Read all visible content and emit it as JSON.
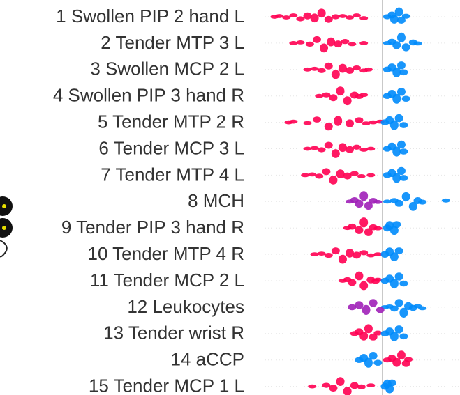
{
  "chart_data": {
    "type": "beeswarm",
    "categories": [
      "1 Swollen PIP 2 hand L",
      "2 Tender MTP 3 L",
      "3 Swollen MCP 2 L",
      "4 Swollen PIP 3 hand R",
      "5 Tender MTP 2 R",
      "6 Tender MCP 3 L",
      "7 Tender MTP 4 L",
      "8 MCH",
      "9 Tender PIP 3 hand R",
      "10 Tender MTP 4 R",
      "11 Tender MCP 2 L",
      "12 Leukocytes",
      "13 Tender wrist R",
      "14 aCCP",
      "15 Tender MCP 1 L"
    ],
    "xlim": [
      -0.5,
      0.33
    ],
    "series": [
      {
        "color": "#ff0052",
        "values": [
          [
            -0.46,
            -0.44,
            -0.41,
            -0.38,
            -0.35,
            -0.32,
            -0.29,
            -0.26,
            -0.23,
            -0.2,
            -0.17,
            -0.14,
            -0.11,
            -0.08
          ],
          [
            -0.38,
            -0.35,
            -0.31,
            -0.28,
            -0.25,
            -0.22,
            -0.19,
            -0.16,
            -0.13,
            -0.08
          ],
          [
            -0.32,
            -0.29,
            -0.26,
            -0.23,
            -0.2,
            -0.17,
            -0.14,
            -0.11,
            -0.08,
            -0.06
          ],
          [
            -0.27,
            -0.24,
            -0.21,
            -0.18,
            -0.15,
            -0.12,
            -0.1,
            -0.08
          ],
          [
            -0.4,
            -0.38,
            -0.32,
            -0.28,
            -0.23,
            -0.19,
            -0.14,
            -0.1,
            -0.07,
            -0.04,
            -0.01
          ],
          [
            -0.32,
            -0.29,
            -0.26,
            -0.23,
            -0.2,
            -0.17,
            -0.14,
            -0.11,
            -0.08,
            -0.05
          ],
          [
            -0.33,
            -0.3,
            -0.27,
            -0.24,
            -0.21,
            -0.18,
            -0.15,
            -0.12,
            -0.09,
            -0.05
          ],
          [],
          [
            -0.15,
            -0.13,
            -0.1,
            -0.08,
            -0.06,
            -0.04,
            -0.02
          ],
          [
            -0.29,
            -0.26,
            -0.23,
            -0.2,
            -0.17,
            -0.14,
            -0.11,
            -0.08,
            -0.05,
            -0.02
          ],
          [
            -0.17,
            -0.15,
            -0.13,
            -0.1,
            -0.08,
            -0.05,
            -0.03,
            -0.02
          ],
          [],
          [
            -0.12,
            -0.1,
            -0.08,
            -0.06,
            -0.04,
            -0.02
          ],
          [
            0.02,
            0.04,
            0.06,
            0.08,
            0.1,
            0.11
          ],
          [
            -0.3,
            -0.24,
            -0.21,
            -0.18,
            -0.15,
            -0.12,
            -0.09,
            -0.05
          ]
        ]
      },
      {
        "color": "#008bfb",
        "values": [
          [
            0.02,
            0.04,
            0.05,
            0.07,
            0.08,
            0.1
          ],
          [
            0.02,
            0.04,
            0.06,
            0.08,
            0.1,
            0.13,
            0.15
          ],
          [
            0.02,
            0.04,
            0.06,
            0.08,
            0.09
          ],
          [
            0.02,
            0.04,
            0.06,
            0.08,
            0.1
          ],
          [
            0.01,
            0.03,
            0.05,
            0.07,
            0.09
          ],
          [
            0.02,
            0.04,
            0.06,
            0.08,
            0.09
          ],
          [
            0.02,
            0.04,
            0.06,
            0.08,
            0.09
          ],
          [
            0.02,
            0.05,
            0.07,
            0.1,
            0.13,
            0.15,
            0.17,
            0.27
          ],
          [
            0.02,
            0.03,
            0.05,
            0.06
          ],
          [
            0.01,
            0.03,
            0.05,
            0.07
          ],
          [
            0.01,
            0.03,
            0.05,
            0.07,
            0.09
          ],
          [
            0.01,
            0.03,
            0.05,
            0.07,
            0.09,
            0.11,
            0.13,
            0.15,
            0.17
          ],
          [
            0.01,
            0.03,
            0.05,
            0.07,
            0.09
          ],
          [
            -0.1,
            -0.08,
            -0.06,
            -0.04,
            -0.02
          ],
          [
            0.01,
            0.02,
            0.03,
            0.04
          ]
        ]
      },
      {
        "color": "#a020b8",
        "values": [
          [],
          [],
          [],
          [],
          [],
          [],
          [],
          [
            -0.14,
            -0.12,
            -0.1,
            -0.08,
            -0.06,
            -0.04,
            -0.02
          ],
          [],
          [],
          [],
          [
            -0.13,
            -0.1,
            -0.07,
            -0.04,
            -0.01
          ],
          [],
          [],
          []
        ]
      }
    ]
  }
}
